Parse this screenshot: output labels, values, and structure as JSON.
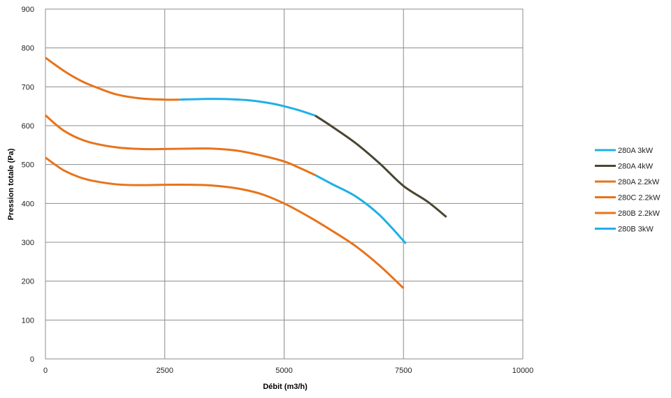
{
  "chart_data": {
    "type": "line",
    "xlabel": "Débit (m3/h)",
    "ylabel": "Pression totale (Pa)",
    "xlim": [
      0,
      10000
    ],
    "ylim": [
      0,
      900
    ],
    "xticks": [
      0,
      2500,
      5000,
      7500,
      10000
    ],
    "yticks": [
      0,
      100,
      200,
      300,
      400,
      500,
      600,
      700,
      800,
      900
    ],
    "grid": true,
    "legend_position": "right",
    "series": [
      {
        "name": "280A 3kW",
        "color": "#1fb0e6",
        "x": [
          2800,
          3500,
          4200,
          4700,
          5000,
          5300,
          5650
        ],
        "y": [
          667,
          669,
          666,
          658,
          650,
          640,
          626
        ]
      },
      {
        "name": "280A 4kW",
        "color": "#4a4630",
        "x": [
          5650,
          6000,
          6500,
          7000,
          7500,
          8000,
          8400
        ],
        "y": [
          626,
          598,
          555,
          503,
          445,
          405,
          365
        ]
      },
      {
        "name": "280A 2.2kW",
        "color": "#e8731a",
        "x": [
          0,
          200,
          400,
          600,
          800,
          1100,
          1500,
          2000,
          2500,
          2800
        ],
        "y": [
          775,
          757,
          740,
          725,
          712,
          697,
          680,
          670,
          667,
          667
        ]
      },
      {
        "name": "280C 2.2kW",
        "color": "#e8731a",
        "x": [
          0,
          200,
          400,
          700,
          1000,
          1500,
          2000,
          2500,
          3000,
          3500,
          4000,
          4500,
          5000,
          5350,
          5650
        ],
        "y": [
          627,
          605,
          586,
          567,
          555,
          544,
          540,
          540,
          541,
          541,
          536,
          524,
          508,
          490,
          473
        ]
      },
      {
        "name": "280B 2.2kW",
        "color": "#e8731a",
        "x": [
          0,
          200,
          400,
          700,
          1000,
          1500,
          2000,
          2500,
          3000,
          3500,
          4000,
          4500,
          5000,
          5500,
          6000,
          6500,
          7000,
          7500
        ],
        "y": [
          518,
          500,
          484,
          468,
          458,
          449,
          447,
          448,
          448,
          446,
          439,
          425,
          400,
          367,
          330,
          290,
          240,
          182
        ]
      },
      {
        "name": "280B 3kW",
        "color": "#1fb0e6",
        "x": [
          5650,
          6000,
          6500,
          7000,
          7550
        ],
        "y": [
          473,
          450,
          418,
          370,
          297
        ]
      }
    ]
  }
}
